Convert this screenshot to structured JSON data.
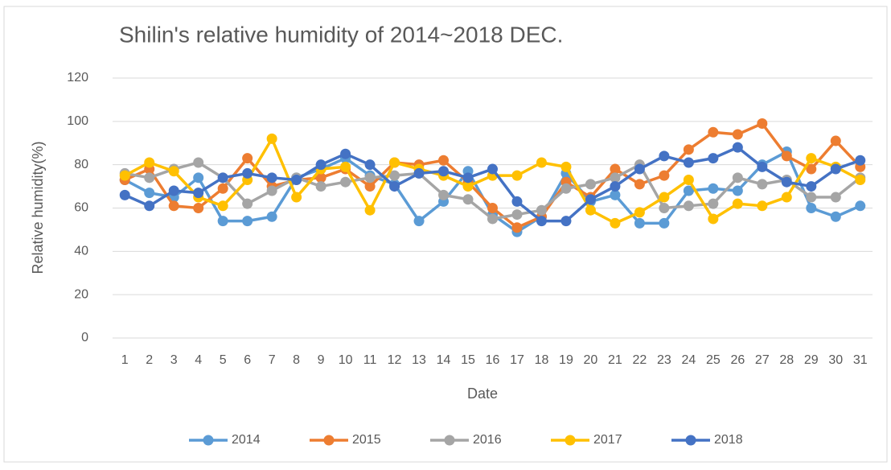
{
  "chart_data": {
    "type": "line",
    "title": "Shilin's relative humidity of 2014~2018 DEC.",
    "x_label": "Date",
    "y_label": "Relative humidity(%)",
    "categories": [
      "1",
      "2",
      "3",
      "4",
      "5",
      "6",
      "7",
      "8",
      "9",
      "10",
      "11",
      "12",
      "13",
      "14",
      "15",
      "16",
      "17",
      "18",
      "19",
      "20",
      "21",
      "22",
      "23",
      "24",
      "25",
      "26",
      "27",
      "28",
      "29",
      "30",
      "31"
    ],
    "series": [
      {
        "name": "2014",
        "color": "#5B9BD5",
        "values": [
          73,
          67,
          65,
          74,
          54,
          54,
          56,
          74,
          78,
          83,
          75,
          71,
          54,
          63,
          77,
          57,
          49,
          56,
          76,
          63,
          66,
          53,
          53,
          68,
          69,
          68,
          80,
          86,
          60,
          56,
          61
        ]
      },
      {
        "name": "2015",
        "color": "#ED7D31",
        "values": [
          73,
          78,
          61,
          60,
          69,
          83,
          70,
          73,
          74,
          78,
          70,
          81,
          80,
          82,
          72,
          60,
          51,
          56,
          72,
          65,
          78,
          71,
          75,
          87,
          95,
          94,
          99,
          84,
          78,
          91,
          79
        ]
      },
      {
        "name": "2016",
        "color": "#A5A5A5",
        "values": [
          76,
          74,
          78,
          81,
          74,
          62,
          68,
          74,
          70,
          72,
          74,
          75,
          76,
          66,
          64,
          55,
          57,
          59,
          69,
          71,
          74,
          80,
          60,
          61,
          62,
          74,
          71,
          73,
          65,
          65,
          74
        ]
      },
      {
        "name": "2017",
        "color": "#FFC000",
        "values": [
          75,
          81,
          77,
          65,
          61,
          73,
          92,
          65,
          78,
          79,
          59,
          81,
          78,
          75,
          70,
          75,
          75,
          81,
          79,
          59,
          53,
          58,
          65,
          73,
          55,
          62,
          61,
          65,
          83,
          79,
          73
        ]
      },
      {
        "name": "2018",
        "color": "#4472C4",
        "values": [
          66,
          61,
          68,
          67,
          74,
          76,
          74,
          73,
          80,
          85,
          80,
          70,
          76,
          77,
          74,
          78,
          63,
          54,
          54,
          64,
          70,
          78,
          84,
          81,
          83,
          88,
          79,
          72,
          70,
          78,
          82
        ]
      }
    ],
    "ylim": [
      0,
      120
    ],
    "yticks": [
      0,
      20,
      40,
      60,
      80,
      100,
      120
    ],
    "grid": true,
    "legend": "bottom"
  }
}
